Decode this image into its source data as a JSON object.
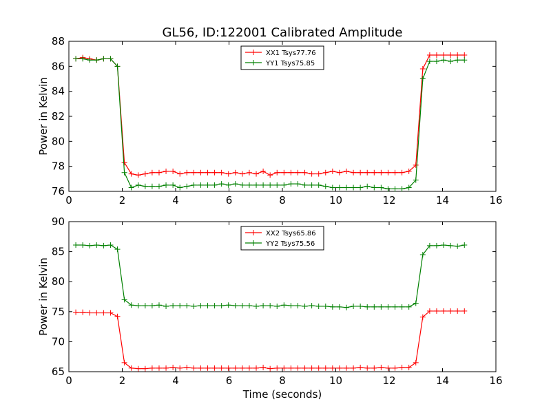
{
  "title": "GL56, ID:122001 Calibrated Amplitude",
  "chart_data": [
    {
      "type": "line",
      "ylabel": "Power in Kelvin",
      "xlabel": "",
      "xlim": [
        0,
        16
      ],
      "ylim": [
        76,
        88
      ],
      "xticks": [
        0,
        2,
        4,
        6,
        8,
        10,
        12,
        14,
        16
      ],
      "yticks": [
        76,
        78,
        80,
        82,
        84,
        86,
        88
      ],
      "legend_position": "top-center",
      "x": [
        0.26,
        0.52,
        0.78,
        1.04,
        1.3,
        1.56,
        1.82,
        2.08,
        2.34,
        2.6,
        2.86,
        3.12,
        3.38,
        3.64,
        3.9,
        4.16,
        4.42,
        4.68,
        4.94,
        5.2,
        5.46,
        5.72,
        5.98,
        6.24,
        6.5,
        6.76,
        7.02,
        7.28,
        7.54,
        7.8,
        8.06,
        8.32,
        8.58,
        8.84,
        9.1,
        9.36,
        9.62,
        9.88,
        10.14,
        10.4,
        10.66,
        10.92,
        11.18,
        11.44,
        11.7,
        11.96,
        12.22,
        12.48,
        12.74,
        13.0,
        13.26,
        13.52,
        13.78,
        14.04,
        14.3,
        14.56,
        14.82
      ],
      "series": [
        {
          "name": "XX1 Tsys77.76",
          "color": "#ff0000",
          "values": [
            86.6,
            86.7,
            86.6,
            86.5,
            86.6,
            86.6,
            86.0,
            78.3,
            77.4,
            77.3,
            77.4,
            77.5,
            77.5,
            77.6,
            77.6,
            77.4,
            77.5,
            77.5,
            77.5,
            77.5,
            77.5,
            77.5,
            77.4,
            77.5,
            77.4,
            77.5,
            77.4,
            77.6,
            77.3,
            77.5,
            77.5,
            77.5,
            77.5,
            77.5,
            77.4,
            77.4,
            77.5,
            77.6,
            77.5,
            77.6,
            77.5,
            77.5,
            77.5,
            77.5,
            77.5,
            77.5,
            77.5,
            77.5,
            77.6,
            78.1,
            85.8,
            86.9,
            86.9,
            86.9,
            86.9,
            86.9,
            86.9
          ]
        },
        {
          "name": "YY1 Tsys75.85",
          "color": "#008000",
          "values": [
            86.6,
            86.6,
            86.5,
            86.5,
            86.6,
            86.6,
            86.0,
            77.5,
            76.3,
            76.5,
            76.4,
            76.4,
            76.4,
            76.5,
            76.5,
            76.3,
            76.4,
            76.5,
            76.5,
            76.5,
            76.5,
            76.6,
            76.5,
            76.6,
            76.5,
            76.5,
            76.5,
            76.5,
            76.5,
            76.5,
            76.5,
            76.6,
            76.6,
            76.5,
            76.5,
            76.5,
            76.4,
            76.3,
            76.3,
            76.3,
            76.3,
            76.3,
            76.4,
            76.3,
            76.3,
            76.2,
            76.2,
            76.2,
            76.3,
            76.9,
            85.0,
            86.4,
            86.4,
            86.5,
            86.4,
            86.5,
            86.5
          ]
        }
      ]
    },
    {
      "type": "line",
      "ylabel": "Power in Kelvin",
      "xlabel": "Time (seconds)",
      "xlim": [
        0,
        16
      ],
      "ylim": [
        65,
        90
      ],
      "xticks": [
        0,
        2,
        4,
        6,
        8,
        10,
        12,
        14,
        16
      ],
      "yticks": [
        65,
        70,
        75,
        80,
        85,
        90
      ],
      "legend_position": "top-center",
      "x": [
        0.26,
        0.52,
        0.78,
        1.04,
        1.3,
        1.56,
        1.82,
        2.08,
        2.34,
        2.6,
        2.86,
        3.12,
        3.38,
        3.64,
        3.9,
        4.16,
        4.42,
        4.68,
        4.94,
        5.2,
        5.46,
        5.72,
        5.98,
        6.24,
        6.5,
        6.76,
        7.02,
        7.28,
        7.54,
        7.8,
        8.06,
        8.32,
        8.58,
        8.84,
        9.1,
        9.36,
        9.62,
        9.88,
        10.14,
        10.4,
        10.66,
        10.92,
        11.18,
        11.44,
        11.7,
        11.96,
        12.22,
        12.48,
        12.74,
        13.0,
        13.26,
        13.52,
        13.78,
        14.04,
        14.3,
        14.56,
        14.82
      ],
      "series": [
        {
          "name": "XX2 Tsys65.86",
          "color": "#ff0000",
          "values": [
            74.9,
            74.9,
            74.8,
            74.8,
            74.8,
            74.8,
            74.2,
            66.5,
            65.6,
            65.5,
            65.5,
            65.6,
            65.6,
            65.6,
            65.7,
            65.6,
            65.7,
            65.6,
            65.6,
            65.6,
            65.6,
            65.6,
            65.6,
            65.6,
            65.6,
            65.6,
            65.6,
            65.7,
            65.5,
            65.6,
            65.6,
            65.6,
            65.6,
            65.6,
            65.6,
            65.6,
            65.6,
            65.6,
            65.6,
            65.6,
            65.6,
            65.7,
            65.6,
            65.6,
            65.7,
            65.6,
            65.6,
            65.7,
            65.7,
            66.5,
            74.1,
            75.1,
            75.1,
            75.1,
            75.1,
            75.1,
            75.1
          ]
        },
        {
          "name": "YY2 Tsys75.56",
          "color": "#008000",
          "values": [
            86.1,
            86.1,
            86.0,
            86.1,
            86.0,
            86.1,
            85.4,
            77.0,
            76.1,
            76.0,
            76.0,
            76.0,
            76.1,
            75.9,
            76.0,
            76.0,
            76.0,
            75.9,
            76.0,
            76.0,
            76.0,
            76.0,
            76.1,
            76.0,
            76.0,
            76.0,
            75.9,
            76.0,
            76.0,
            75.9,
            76.1,
            76.0,
            76.0,
            75.9,
            76.0,
            75.9,
            75.9,
            75.8,
            75.8,
            75.7,
            75.9,
            75.9,
            75.8,
            75.8,
            75.8,
            75.8,
            75.8,
            75.8,
            75.8,
            76.4,
            84.5,
            86.0,
            86.0,
            86.1,
            86.0,
            85.9,
            86.1
          ]
        }
      ]
    }
  ]
}
